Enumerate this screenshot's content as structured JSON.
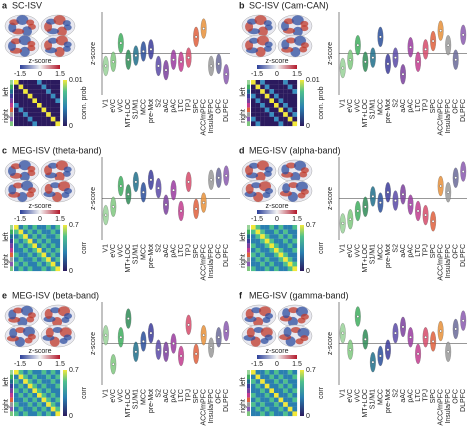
{
  "chart_data": [
    {
      "type": "violin",
      "letter": "a",
      "title": "SC-ISV",
      "ylabel": "z-score",
      "categories": [
        "V1",
        "eVC",
        "vVC",
        "MT+LOC",
        "S1/M1",
        "MCC",
        "pre-Mot",
        "S2",
        "aAC",
        "pAC",
        "LTC",
        "TPJ",
        "SPC",
        "ACC/mPFC",
        "Insula/FPC",
        "OFC",
        "DLPFC"
      ],
      "values": [
        -0.6,
        -0.4,
        0.5,
        -0.3,
        -0.1,
        0.1,
        0.2,
        -0.6,
        -0.8,
        -0.3,
        -0.4,
        -0.2,
        0.8,
        1.2,
        -0.6,
        -0.5,
        -1.0
      ],
      "colors": [
        "#9ad39a",
        "#7fc87f",
        "#3fae5f",
        "#2e8b57",
        "#1f6f8b",
        "#2a4e9b",
        "#3b3b9b",
        "#5a4aa8",
        "#7b3f9e",
        "#9b3aa0",
        "#c23b8f",
        "#d64b6b",
        "#e0603d",
        "#e8913a",
        "#9a9a9a",
        "#6a6a9a",
        "#8a5ab0"
      ],
      "ylim": [
        -2,
        2
      ],
      "brain_colorbar": {
        "label": "z-score",
        "ticks": [
          -1.5,
          0,
          1.5
        ]
      },
      "matrix": {
        "top": "left",
        "bottom": "right",
        "colorbar_label": "conn. prob",
        "ticks": [
          0,
          0.01
        ]
      }
    },
    {
      "type": "violin",
      "letter": "b",
      "title": "SC-ISV (Cam-CAN)",
      "ylabel": "z-score",
      "categories": [
        "V1",
        "eVC",
        "vVC",
        "MT+LOC",
        "S1/M1",
        "MCC",
        "pre-Mot",
        "S2",
        "aAC",
        "pAC",
        "LTC",
        "TPJ",
        "SPC",
        "ACC/mPFC",
        "Insula/FPC",
        "OFC",
        "DLPFC"
      ],
      "values": [
        -0.7,
        -0.3,
        0.4,
        -0.4,
        -0.2,
        0.8,
        -0.5,
        -0.2,
        -1.0,
        0.3,
        -0.4,
        0.2,
        0.6,
        1.1,
        0.4,
        -0.3,
        0.9
      ],
      "colors": [
        "#9ad39a",
        "#7fc87f",
        "#3fae5f",
        "#2e8b57",
        "#1f6f8b",
        "#2a4e9b",
        "#3b3b9b",
        "#5a4aa8",
        "#7b3f9e",
        "#9b3aa0",
        "#c23b8f",
        "#d64b6b",
        "#e0603d",
        "#e8913a",
        "#9a9a9a",
        "#6a6a9a",
        "#8a5ab0"
      ],
      "ylim": [
        -2,
        2
      ],
      "brain_colorbar": {
        "label": "z-score",
        "ticks": [
          -1.5,
          0,
          1.5
        ]
      },
      "matrix": {
        "top": "left",
        "bottom": "right",
        "colorbar_label": "conn. prob",
        "ticks": [
          0,
          0.01
        ]
      }
    },
    {
      "type": "violin",
      "letter": "c",
      "title": "MEG-ISV (theta-band)",
      "ylabel": "z-score",
      "categories": [
        "V1",
        "eVC",
        "vVC",
        "MT+LOC",
        "S1/M1",
        "MCC",
        "pre-Mot",
        "S2",
        "aAC",
        "pAC",
        "LTC",
        "TPJ",
        "SPC",
        "ACC/mPFC",
        "Insula/FPC",
        "OFC",
        "DLPFC"
      ],
      "values": [
        -0.8,
        -0.4,
        0.6,
        0.2,
        0.8,
        0.3,
        0.9,
        0.5,
        -0.3,
        0.4,
        -0.6,
        0.8,
        -0.5,
        -0.2,
        0.9,
        1.0,
        1.1
      ],
      "colors": [
        "#9ad39a",
        "#7fc87f",
        "#3fae5f",
        "#2e8b57",
        "#1f6f8b",
        "#2a4e9b",
        "#3b3b9b",
        "#5a4aa8",
        "#7b3f9e",
        "#9b3aa0",
        "#c23b8f",
        "#d64b6b",
        "#e0603d",
        "#e8913a",
        "#9a9a9a",
        "#6a6a9a",
        "#8a5ab0"
      ],
      "ylim": [
        -2,
        2
      ],
      "brain_colorbar": {
        "label": "z-score",
        "ticks": [
          -1.5,
          0,
          1.5
        ]
      },
      "matrix": {
        "top": "left",
        "bottom": "right",
        "colorbar_label": "corr",
        "ticks": [
          0,
          0.7
        ]
      }
    },
    {
      "type": "violin",
      "letter": "d",
      "title": "MEG-ISV (alpha-band)",
      "ylabel": "z-score",
      "categories": [
        "V1",
        "eVC",
        "vVC",
        "MT+LOC",
        "S1/M1",
        "MCC",
        "pre-Mot",
        "S2",
        "aAC",
        "pAC",
        "LTC",
        "TPJ",
        "SPC",
        "ACC/mPFC",
        "Insula/FPC",
        "OFC",
        "DLPFC"
      ],
      "values": [
        -1.2,
        -1.0,
        -0.6,
        -0.4,
        0.1,
        -0.2,
        0.3,
        -0.1,
        0.2,
        -0.3,
        -0.6,
        -0.8,
        -1.1,
        0.6,
        0.3,
        1.0,
        1.3
      ],
      "colors": [
        "#9ad39a",
        "#7fc87f",
        "#3fae5f",
        "#2e8b57",
        "#1f6f8b",
        "#2a4e9b",
        "#3b3b9b",
        "#5a4aa8",
        "#7b3f9e",
        "#9b3aa0",
        "#c23b8f",
        "#d64b6b",
        "#e0603d",
        "#e8913a",
        "#9a9a9a",
        "#6a6a9a",
        "#8a5ab0"
      ],
      "ylim": [
        -2,
        2
      ],
      "brain_colorbar": {
        "label": "z-score",
        "ticks": [
          -1.5,
          0,
          1.5
        ]
      },
      "matrix": {
        "top": "left",
        "bottom": "right",
        "colorbar_label": "corr",
        "ticks": [
          0,
          0.7
        ]
      }
    },
    {
      "type": "violin",
      "letter": "e",
      "title": "MEG-ISV (beta-band)",
      "ylabel": "z-score",
      "categories": [
        "V1",
        "eVC",
        "vVC",
        "MT+LOC",
        "S1/M1",
        "MCC",
        "pre-Mot",
        "S2",
        "aAC",
        "pAC",
        "LTC",
        "TPJ",
        "SPC",
        "ACC/mPFC",
        "Insula/FPC",
        "OFC",
        "DLPFC"
      ],
      "values": [
        0.4,
        -1.0,
        0.3,
        1.2,
        -0.4,
        0.1,
        0.5,
        -0.3,
        -0.4,
        0.0,
        -0.6,
        0.9,
        -0.5,
        0.4,
        -0.2,
        0.3,
        0.6
      ],
      "colors": [
        "#9ad39a",
        "#7fc87f",
        "#3fae5f",
        "#2e8b57",
        "#1f6f8b",
        "#2a4e9b",
        "#3b3b9b",
        "#5a4aa8",
        "#7b3f9e",
        "#9b3aa0",
        "#c23b8f",
        "#d64b6b",
        "#e0603d",
        "#e8913a",
        "#9a9a9a",
        "#6a6a9a",
        "#8a5ab0"
      ],
      "ylim": [
        -2,
        2
      ],
      "brain_colorbar": {
        "label": "z-score",
        "ticks": [
          -1.5,
          0,
          1.5
        ]
      },
      "matrix": {
        "top": "left",
        "bottom": "right",
        "colorbar_label": "corr",
        "ticks": [
          0,
          0.7
        ]
      }
    },
    {
      "type": "violin",
      "letter": "f",
      "title": "MEG-ISV (gamma-band)",
      "ylabel": "z-score",
      "categories": [
        "V1",
        "eVC",
        "vVC",
        "MT+LOC",
        "S1/M1",
        "MCC",
        "pre-Mot",
        "S2",
        "aAC",
        "pAC",
        "LTC",
        "TPJ",
        "SPC",
        "ACC/mPFC",
        "Insula/FPC",
        "OFC",
        "DLPFC"
      ],
      "values": [
        0.5,
        -0.3,
        1.3,
        0.2,
        -0.9,
        -0.6,
        -0.3,
        0.5,
        0.8,
        0.3,
        -0.5,
        0.3,
        0.1,
        0.6,
        -0.4,
        0.7,
        1.1
      ],
      "colors": [
        "#9ad39a",
        "#7fc87f",
        "#3fae5f",
        "#2e8b57",
        "#1f6f8b",
        "#2a4e9b",
        "#3b3b9b",
        "#5a4aa8",
        "#7b3f9e",
        "#9b3aa0",
        "#c23b8f",
        "#d64b6b",
        "#e0603d",
        "#e8913a",
        "#9a9a9a",
        "#6a6a9a",
        "#8a5ab0"
      ],
      "ylim": [
        -2,
        2
      ],
      "brain_colorbar": {
        "label": "z-score",
        "ticks": [
          -1.5,
          0,
          1.5
        ]
      },
      "matrix": {
        "top": "left",
        "bottom": "right",
        "colorbar_label": "corr",
        "ticks": [
          0,
          0.7
        ]
      }
    }
  ]
}
